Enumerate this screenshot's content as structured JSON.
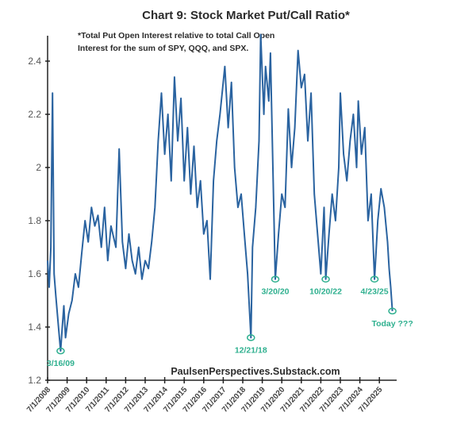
{
  "chart_data": {
    "type": "line",
    "title": "Chart 9: Stock Market Put/Call Ratio*",
    "note_lines": [
      "*Total Put Open Interest relative to total Call Open",
      "Interest for the sum of SPY, QQQ, and SPX."
    ],
    "source": "PaulsenPerspectives.Substack.com",
    "xlabel": "",
    "ylabel": "",
    "ylim": [
      1.2,
      2.5
    ],
    "y_ticks": [
      1.2,
      1.4,
      1.6,
      1.8,
      2,
      2.2,
      2.4
    ],
    "y_tick_labels": [
      "1.2",
      "1.4",
      "1.6",
      "1.8",
      "2",
      "2.2",
      "2.4"
    ],
    "x_ticks": [
      "2008-07-01",
      "2009-07-01",
      "2010-07-01",
      "2011-07-01",
      "2012-07-01",
      "2013-07-01",
      "2014-07-01",
      "2015-07-01",
      "2016-07-01",
      "2017-07-01",
      "2018-07-01",
      "2019-07-01",
      "2020-07-01",
      "2021-07-01",
      "2022-07-01",
      "2023-07-01",
      "2024-07-01",
      "2025-07-01"
    ],
    "x_tick_labels": [
      "7/1/2008",
      "7/1/2009",
      "7/1/2010",
      "7/1/2011",
      "7/1/2012",
      "7/1/2013",
      "7/1/2014",
      "7/1/2015",
      "7/1/2016",
      "7/1/2017",
      "7/1/2018",
      "7/1/2019",
      "7/1/2020",
      "7/1/2021",
      "7/1/2022",
      "7/1/2023",
      "7/1/2024",
      "7/1/2025"
    ],
    "grid": false,
    "line_color": "#2a63a0",
    "annotation_color": "#2fb08f",
    "series": [
      {
        "x": [
          "2008-07",
          "2008-08",
          "2008-09",
          "2008-10",
          "2008-11",
          "2008-12",
          "2009-01",
          "2009-02",
          "2009-03",
          "2009-04",
          "2009-05",
          "2009-06",
          "2009-08",
          "2009-10",
          "2009-12",
          "2010-02",
          "2010-04",
          "2010-06",
          "2010-08",
          "2010-10",
          "2010-12",
          "2011-02",
          "2011-04",
          "2011-06",
          "2011-08",
          "2011-10",
          "2012-01",
          "2012-03",
          "2012-05",
          "2012-07",
          "2012-09",
          "2012-11",
          "2013-01",
          "2013-03",
          "2013-05",
          "2013-07",
          "2013-09",
          "2013-11",
          "2014-01",
          "2014-03",
          "2014-05",
          "2014-07",
          "2014-09",
          "2014-11",
          "2015-01",
          "2015-03",
          "2015-05",
          "2015-07",
          "2015-09",
          "2015-11",
          "2016-01",
          "2016-03",
          "2016-05",
          "2016-07",
          "2016-09",
          "2016-11",
          "2017-01",
          "2017-03",
          "2017-05",
          "2017-08",
          "2017-10",
          "2017-12",
          "2018-02",
          "2018-04",
          "2018-06",
          "2018-08",
          "2018-10",
          "2018-12",
          "2019-01",
          "2019-03",
          "2019-05",
          "2019-06",
          "2019-08",
          "2019-09",
          "2019-11",
          "2019-12",
          "2020-01",
          "2020-03",
          "2020-05",
          "2020-07",
          "2020-09",
          "2020-11",
          "2021-01",
          "2021-03",
          "2021-05",
          "2021-07",
          "2021-09",
          "2021-11",
          "2022-01",
          "2022-03",
          "2022-05",
          "2022-07",
          "2022-09",
          "2022-10",
          "2022-12",
          "2023-02",
          "2023-04",
          "2023-06",
          "2023-07",
          "2023-09",
          "2023-11",
          "2024-01",
          "2024-03",
          "2024-05",
          "2024-06",
          "2024-08",
          "2024-10",
          "2024-12",
          "2025-02",
          "2025-04",
          "2025-06",
          "2025-08",
          "2025-10",
          "2025-12",
          "2026-01",
          "2026-02",
          "2026-03"
        ],
        "values": [
          1.65,
          1.55,
          1.7,
          2.28,
          1.6,
          1.52,
          1.45,
          1.38,
          1.31,
          1.4,
          1.48,
          1.36,
          1.45,
          1.5,
          1.6,
          1.55,
          1.68,
          1.8,
          1.72,
          1.85,
          1.78,
          1.82,
          1.7,
          1.85,
          1.65,
          1.78,
          1.7,
          2.07,
          1.72,
          1.62,
          1.75,
          1.65,
          1.6,
          1.7,
          1.58,
          1.65,
          1.62,
          1.72,
          1.85,
          2.1,
          2.28,
          2.05,
          2.2,
          1.95,
          2.34,
          2.1,
          2.26,
          1.95,
          2.15,
          1.9,
          2.08,
          1.85,
          1.95,
          1.75,
          1.8,
          1.58,
          1.95,
          2.1,
          2.2,
          2.38,
          2.15,
          2.32,
          2.0,
          1.85,
          1.9,
          1.75,
          1.6,
          1.36,
          1.7,
          1.85,
          2.1,
          2.5,
          2.2,
          2.38,
          2.25,
          2.43,
          2.15,
          1.58,
          1.75,
          1.9,
          1.85,
          2.22,
          2.0,
          2.15,
          2.44,
          2.3,
          2.35,
          2.1,
          2.28,
          1.9,
          1.75,
          1.6,
          1.85,
          1.58,
          1.75,
          1.9,
          1.8,
          2.0,
          2.28,
          2.05,
          1.95,
          2.1,
          2.2,
          2.0,
          2.25,
          2.05,
          2.15,
          1.8,
          1.9,
          1.58,
          1.8,
          1.92,
          1.85,
          1.72,
          1.62,
          1.55,
          1.46
        ]
      }
    ],
    "annotations": [
      {
        "label": "3/16/09",
        "date": "2009-03",
        "value": 1.31
      },
      {
        "label": "12/21/18",
        "date": "2018-12",
        "value": 1.36
      },
      {
        "label": "3/20/20",
        "date": "2020-03",
        "value": 1.58
      },
      {
        "label": "10/20/22",
        "date": "2022-10",
        "value": 1.58
      },
      {
        "label": "4/23/25",
        "date": "2025-04",
        "value": 1.58
      },
      {
        "label": "Today ???",
        "date": "2026-03",
        "value": 1.46
      }
    ]
  }
}
